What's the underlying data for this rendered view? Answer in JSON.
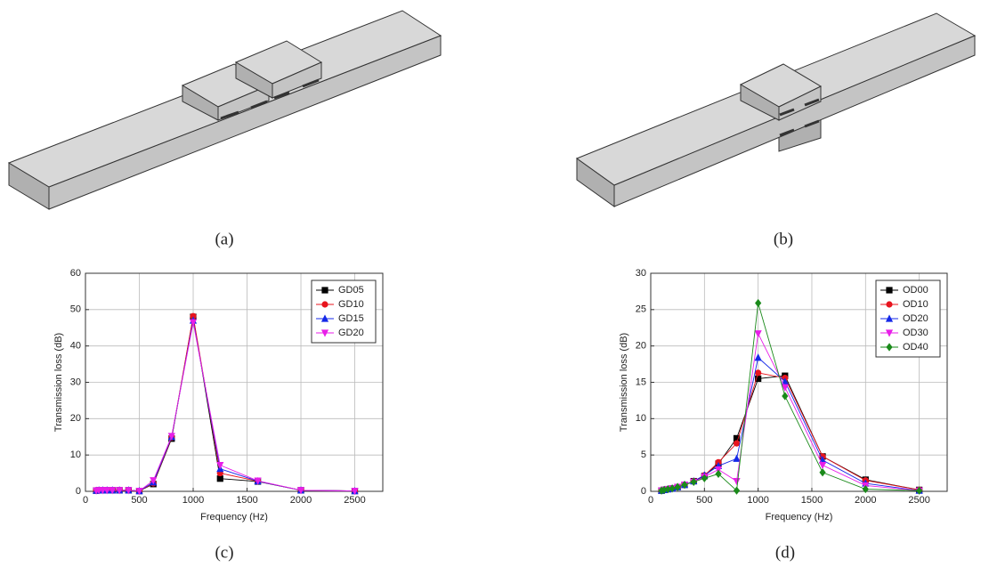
{
  "figures": [
    {
      "label": "(a)"
    },
    {
      "label": "(b)"
    }
  ],
  "chart_data": [
    {
      "type": "line",
      "label": "(c)",
      "xlabel": "Frequency (Hz)",
      "ylabel": "Transmission loss (dB)",
      "x": [
        100,
        125,
        160,
        200,
        250,
        315,
        400,
        500,
        630,
        800,
        1000,
        1250,
        1600,
        2000,
        2500
      ],
      "xlim": [
        0,
        2760
      ],
      "xticks": [
        0,
        500,
        1000,
        1500,
        2000,
        2500
      ],
      "ylim": [
        0,
        60
      ],
      "yticks": [
        0,
        10,
        20,
        30,
        40,
        50,
        60
      ],
      "grid": true,
      "legend": "upper right",
      "series": [
        {
          "name": "GD05",
          "color": "#000000",
          "marker": "square",
          "values": [
            0.2,
            0.3,
            0.3,
            0.3,
            0.3,
            0.3,
            0.3,
            0.1,
            2,
            14.5,
            48,
            3.5,
            2.7,
            0.3,
            0.1
          ]
        },
        {
          "name": "GD10",
          "color": "#e8141e",
          "marker": "circle",
          "values": [
            0.2,
            0.3,
            0.3,
            0.3,
            0.3,
            0.3,
            0.3,
            0.1,
            2.2,
            14.8,
            48.2,
            5,
            2.8,
            0.3,
            0.1
          ]
        },
        {
          "name": "GD15",
          "color": "#1428e8",
          "marker": "triangle-up",
          "values": [
            0.2,
            0.3,
            0.3,
            0.3,
            0.3,
            0.3,
            0.3,
            0.1,
            2.5,
            15,
            47,
            6.2,
            2.8,
            0.3,
            0.1
          ]
        },
        {
          "name": "GD20",
          "color": "#e81ee8",
          "marker": "triangle-down",
          "values": [
            0.2,
            0.3,
            0.3,
            0.3,
            0.3,
            0.3,
            0.3,
            0.1,
            3,
            15.2,
            46.5,
            7.2,
            2.9,
            0.3,
            0.1
          ]
        }
      ]
    },
    {
      "type": "line",
      "label": "(d)",
      "xlabel": "Frequency (Hz)",
      "ylabel": "Transmission loss (dB)",
      "x": [
        100,
        125,
        160,
        200,
        250,
        315,
        400,
        500,
        630,
        800,
        1000,
        1250,
        1600,
        2000,
        2500
      ],
      "xlim": [
        0,
        2760
      ],
      "xticks": [
        0,
        500,
        1000,
        1500,
        2000,
        2500
      ],
      "ylim": [
        0,
        30
      ],
      "yticks": [
        0,
        5,
        10,
        15,
        20,
        25,
        30
      ],
      "grid": true,
      "legend": "upper right",
      "series": [
        {
          "name": "OD00",
          "color": "#000000",
          "marker": "square",
          "values": [
            0.1,
            0.2,
            0.3,
            0.4,
            0.6,
            0.9,
            1.4,
            2.1,
            3.8,
            7.3,
            15.5,
            15.9,
            4.8,
            1.6,
            0.2
          ]
        },
        {
          "name": "OD10",
          "color": "#e8141e",
          "marker": "circle",
          "values": [
            0.1,
            0.2,
            0.3,
            0.4,
            0.6,
            0.9,
            1.4,
            2.2,
            4.0,
            6.6,
            16.3,
            15.6,
            4.8,
            1.5,
            0.2
          ]
        },
        {
          "name": "OD20",
          "color": "#1428e8",
          "marker": "triangle-up",
          "values": [
            0.1,
            0.2,
            0.3,
            0.4,
            0.6,
            0.9,
            1.4,
            2.2,
            3.5,
            4.5,
            18.4,
            15.1,
            4.3,
            1.1,
            0.1
          ]
        },
        {
          "name": "OD30",
          "color": "#e81ee8",
          "marker": "triangle-down",
          "values": [
            0.1,
            0.2,
            0.3,
            0.4,
            0.6,
            0.9,
            1.3,
            2.0,
            3.0,
            1.4,
            21.7,
            14.3,
            3.6,
            0.8,
            0.1
          ]
        },
        {
          "name": "OD40",
          "color": "#1a8a1a",
          "marker": "diamond",
          "values": [
            0.1,
            0.2,
            0.3,
            0.4,
            0.6,
            0.9,
            1.3,
            1.8,
            2.4,
            0.1,
            25.9,
            13.1,
            2.6,
            0.3,
            0.1
          ]
        }
      ]
    }
  ]
}
